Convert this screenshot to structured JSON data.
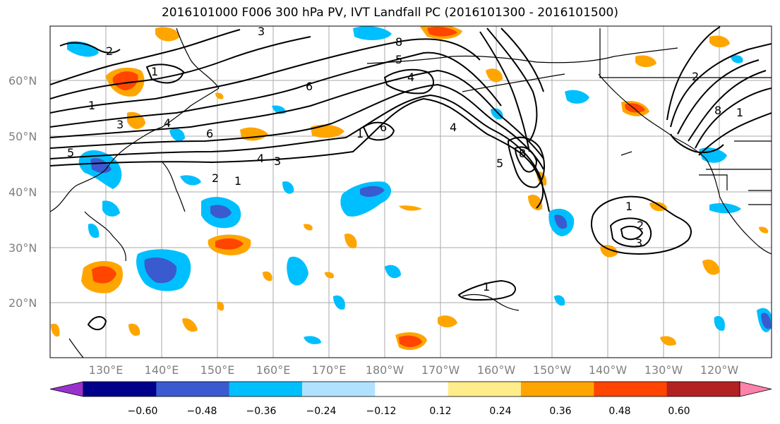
{
  "title": "2016101000 F006 300 hPa PV, IVT Landfall PC (2016101300 - 2016101500)",
  "longitude_labels": [
    "130°E",
    "140°E",
    "150°E",
    "160°E",
    "170°E",
    "180°W",
    "170°W",
    "160°W",
    "150°W",
    "140°W",
    "130°W",
    "120°W"
  ],
  "latitude_labels": [
    "60°N",
    "50°N",
    "40°N",
    "30°N",
    "20°N"
  ],
  "colorbar": {
    "colors": [
      "#9932cc",
      "#00008b",
      "#3a5bd0",
      "#00bfff",
      "#b0e2ff",
      "#ffffff",
      "#ffec8b",
      "#ffa500",
      "#ff4500",
      "#b22222",
      "#ff82ab"
    ],
    "tick_labels": [
      "−0.60",
      "−0.48",
      "−0.36",
      "−0.24",
      "−0.12",
      "0.12",
      "0.24",
      "0.36",
      "0.48",
      "0.60"
    ]
  },
  "contour_labels": [
    "2",
    "1",
    "3",
    "4",
    "6",
    "5",
    "8",
    "4",
    "1",
    "3",
    "5",
    "6",
    "4",
    "3",
    "2",
    "1",
    "6",
    "4",
    "8",
    "5",
    "1",
    "2",
    "3",
    "1",
    "1",
    "8",
    "1",
    "2"
  ]
}
